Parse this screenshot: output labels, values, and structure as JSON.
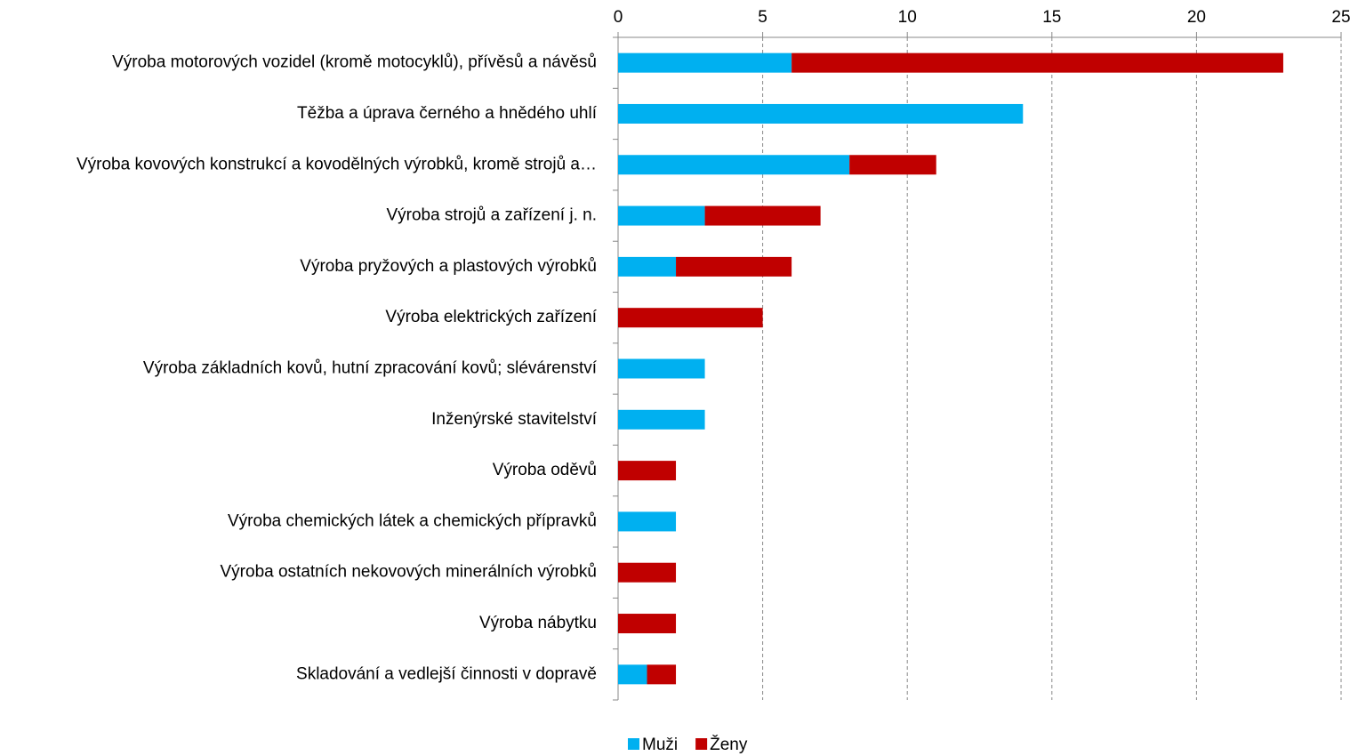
{
  "chart_data": {
    "type": "stacked-bar-horizontal",
    "categories": [
      "Výroba motorových vozidel (kromě motocyklů), přívěsů a návěsů",
      "Těžba a úprava černého a hnědého uhlí",
      "Výroba kovových konstrukcí a kovodělných výrobků, kromě strojů a…",
      "Výroba strojů a zařízení j. n.",
      "Výroba pryžových a plastových výrobků",
      "Výroba elektrických zařízení",
      "Výroba základních kovů, hutní zpracování kovů; slévárenství",
      "Inženýrské stavitelství",
      "Výroba oděvů",
      "Výroba chemických látek a chemických přípravků",
      "Výroba ostatních nekovových minerálních výrobků",
      "Výroba nábytku",
      "Skladování a vedlejší činnosti v dopravě"
    ],
    "series": [
      {
        "name": "Muži",
        "color": "#00b0f0",
        "values": [
          6,
          14,
          8,
          3,
          2,
          0,
          3,
          3,
          0,
          2,
          0,
          0,
          1
        ]
      },
      {
        "name": "Ženy",
        "color": "#c00000",
        "values": [
          17,
          0,
          3,
          4,
          4,
          5,
          0,
          0,
          2,
          0,
          2,
          2,
          1
        ]
      }
    ],
    "xlim": [
      0,
      25
    ],
    "xticks": [
      0,
      5,
      10,
      15,
      20,
      25
    ],
    "grid": true,
    "legend": "bottom"
  }
}
